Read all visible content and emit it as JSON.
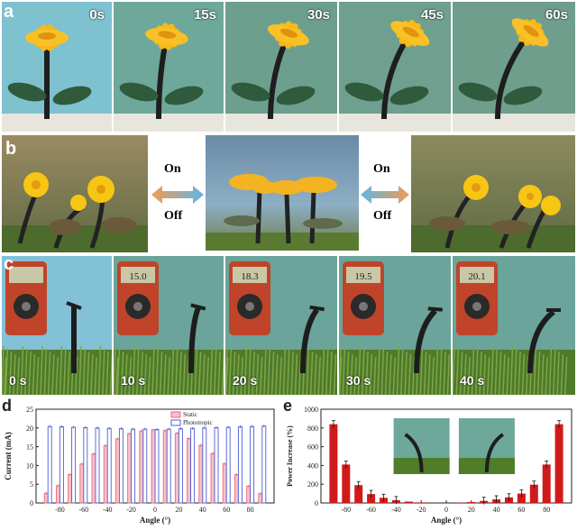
{
  "panel_a": {
    "letter": "a",
    "frames": [
      {
        "time": "0s",
        "bg": "#7ec1cf",
        "lean": 0
      },
      {
        "time": "15s",
        "bg": "#6ea89a",
        "lean": 0.25
      },
      {
        "time": "30s",
        "bg": "#6d9f8f",
        "lean": 0.55
      },
      {
        "time": "45s",
        "bg": "#6f9f8e",
        "lean": 0.8
      },
      {
        "time": "60s",
        "bg": "#6f9e8d",
        "lean": 1.0
      }
    ]
  },
  "panel_b": {
    "letter": "b",
    "arrow_top_label": "On",
    "arrow_bottom_label": "Off",
    "arrow_right_top_label": "On",
    "arrow_right_bottom_label": "Off"
  },
  "panel_c": {
    "letter": "c",
    "frames": [
      {
        "time": "0 s",
        "reading": "",
        "bend": 0
      },
      {
        "time": "10 s",
        "reading": "15.0",
        "bend": 0.3
      },
      {
        "time": "20 s",
        "reading": "18.3",
        "bend": 0.6
      },
      {
        "time": "30 s",
        "reading": "19.5",
        "bend": 0.8
      },
      {
        "time": "40 s",
        "reading": "20.1",
        "bend": 1.0
      }
    ]
  },
  "chart_data": [
    {
      "panel": "d",
      "type": "bar",
      "xlabel": "Angle (°)",
      "ylabel": "Current (mA)",
      "ylim": [
        0,
        25
      ],
      "yticks": [
        0,
        5,
        10,
        15,
        20,
        25
      ],
      "xticks": [
        -80,
        -60,
        -40,
        -20,
        0,
        20,
        40,
        60,
        80
      ],
      "legend_position": "top-center",
      "categories": [
        -90,
        -80,
        -70,
        -60,
        -50,
        -40,
        -30,
        -20,
        -10,
        0,
        10,
        20,
        30,
        40,
        50,
        60,
        70,
        80,
        90
      ],
      "series": [
        {
          "name": "Static",
          "color": "#ef6a7a",
          "values": [
            2.6,
            4.6,
            7.6,
            10.4,
            13.1,
            15.3,
            17.1,
            18.5,
            19.2,
            19.5,
            19.3,
            18.6,
            17.2,
            15.4,
            13.2,
            10.5,
            7.6,
            4.5,
            2.5
          ]
        },
        {
          "name": "Phototropic",
          "color": "#4a5fcf",
          "values": [
            20.4,
            20.3,
            20.2,
            20.1,
            20.0,
            19.9,
            19.8,
            19.7,
            19.7,
            19.6,
            19.7,
            19.8,
            19.9,
            20.0,
            20.1,
            20.2,
            20.3,
            20.4,
            20.5
          ]
        }
      ]
    },
    {
      "panel": "e",
      "type": "bar",
      "xlabel": "Angle (°)",
      "ylabel": "Power Increase (%)",
      "ylim": [
        0,
        1000
      ],
      "yticks": [
        0,
        200,
        400,
        600,
        800,
        1000
      ],
      "xticks": [
        -80,
        -60,
        -40,
        -20,
        0,
        20,
        40,
        60,
        80
      ],
      "categories": [
        -90,
        -80,
        -70,
        -60,
        -50,
        -40,
        -30,
        -20,
        -10,
        0,
        10,
        20,
        30,
        40,
        50,
        60,
        70,
        80,
        90
      ],
      "series": [
        {
          "color": "#d11a1a",
          "values": [
            840,
            410,
            190,
            95,
            55,
            30,
            15,
            6,
            2,
            0,
            3,
            10,
            22,
            38,
            60,
            100,
            195,
            410,
            840
          ]
        }
      ]
    }
  ]
}
